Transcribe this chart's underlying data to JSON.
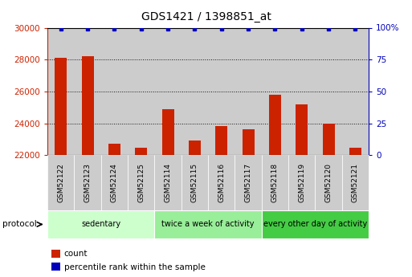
{
  "title": "GDS1421 / 1398851_at",
  "samples": [
    "GSM52122",
    "GSM52123",
    "GSM52124",
    "GSM52125",
    "GSM52114",
    "GSM52115",
    "GSM52116",
    "GSM52117",
    "GSM52118",
    "GSM52119",
    "GSM52120",
    "GSM52121"
  ],
  "counts": [
    28100,
    28200,
    22700,
    22450,
    24900,
    22900,
    23800,
    23600,
    25800,
    25200,
    24000,
    22450
  ],
  "percentile_ranks_val": 99,
  "ylim_left": [
    22000,
    30000
  ],
  "ylim_right": [
    0,
    100
  ],
  "yticks_left": [
    22000,
    24000,
    26000,
    28000,
    30000
  ],
  "yticks_right": [
    0,
    25,
    50,
    75,
    100
  ],
  "bar_color": "#cc2200",
  "dot_color": "#0000bb",
  "groups": [
    {
      "label": "sedentary",
      "start": 0,
      "end": 4,
      "color": "#ccffcc"
    },
    {
      "label": "twice a week of activity",
      "start": 4,
      "end": 8,
      "color": "#99ee99"
    },
    {
      "label": "every other day of activity",
      "start": 8,
      "end": 12,
      "color": "#44cc44"
    }
  ],
  "protocol_label": "protocol",
  "legend_count_label": "count",
  "legend_pct_label": "percentile rank within the sample",
  "bar_bg_color": "#cccccc",
  "tick_color_left": "#cc2200",
  "tick_color_right": "#0000bb",
  "grid_color": "#111111",
  "title_fontsize": 10
}
